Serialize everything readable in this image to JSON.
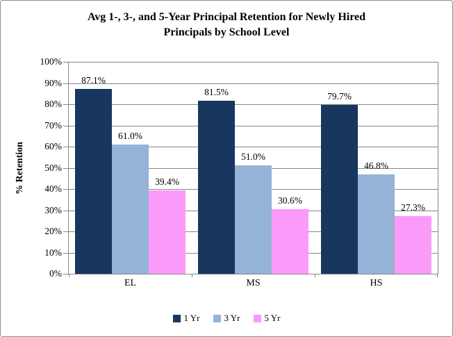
{
  "window": {
    "background": "#ffffff",
    "border_color": "#8e8e8e"
  },
  "title": {
    "line1": "Avg 1-, 3-, and 5-Year Principal Retention for Newly Hired",
    "line2": "Principals by School Level"
  },
  "chart_data": {
    "type": "bar",
    "title": "Avg 1-, 3-, and 5-Year Principal Retention for Newly Hired Principals by School Level",
    "categories": [
      "EL",
      "MS",
      "HS"
    ],
    "series": [
      {
        "name": "1 Yr",
        "color": "#17375e",
        "values": [
          87.1,
          81.5,
          79.7
        ],
        "labels": [
          "87.1%",
          "81.5%",
          "79.7%"
        ]
      },
      {
        "name": "3 Yr",
        "color": "#95b3d7",
        "values": [
          61.0,
          51.0,
          46.8
        ],
        "labels": [
          "61.0%",
          "51.0%",
          "46.8%"
        ]
      },
      {
        "name": "5 Yr",
        "color": "#fa9bfa",
        "values": [
          39.4,
          30.6,
          27.3
        ],
        "labels": [
          "39.4%",
          "30.6%",
          "27.3%"
        ]
      }
    ],
    "xlabel": "",
    "ylabel": "% Retention",
    "ylim": [
      0,
      100
    ],
    "ytick_interval": 10,
    "ytick_labels": [
      "0%",
      "10%",
      "20%",
      "30%",
      "40%",
      "50%",
      "60%",
      "70%",
      "80%",
      "90%",
      "100%"
    ],
    "grid": true,
    "gridline_color": "#878787",
    "axis_color": "#878787",
    "legend_position": "bottom"
  }
}
